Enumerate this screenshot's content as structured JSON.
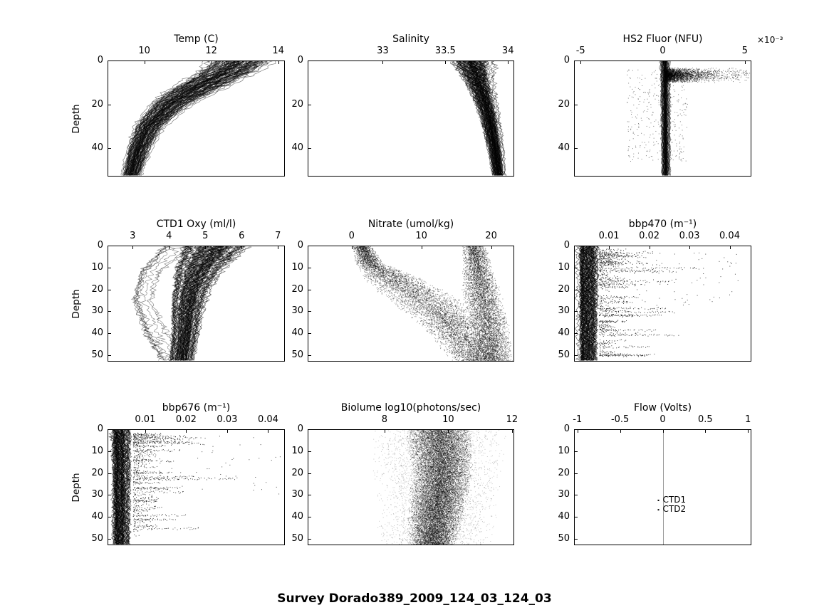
{
  "figure_title": "Survey Dorado389_2009_124_03_124_03",
  "ylabel": "Depth",
  "accent_color": "#000000",
  "background_color": "#ffffff",
  "chart_data": [
    {
      "id": "temp",
      "type": "scatter",
      "title": "Temp (C)",
      "style": "profiles",
      "xlim": [
        8.9,
        14.2
      ],
      "ylim": [
        0,
        53
      ],
      "xticks": [
        10,
        12,
        14
      ],
      "yticks": [
        0,
        20,
        40
      ],
      "has_ylabel": true,
      "profiles": {
        "n": 110,
        "alpha": 0.5,
        "jitter": 0.15,
        "profile": [
          [
            0,
            12.9,
            1.1
          ],
          [
            5,
            12.5,
            1.0
          ],
          [
            10,
            11.9,
            0.9
          ],
          [
            15,
            11.3,
            0.85
          ],
          [
            20,
            10.8,
            0.7
          ],
          [
            30,
            10.15,
            0.5
          ],
          [
            40,
            9.85,
            0.4
          ],
          [
            53,
            9.6,
            0.32
          ]
        ]
      }
    },
    {
      "id": "salinity",
      "type": "scatter",
      "title": "Salinity",
      "style": "profiles",
      "xlim": [
        32.4,
        34.05
      ],
      "ylim": [
        0,
        53
      ],
      "xticks": [
        33,
        33.5,
        34
      ],
      "yticks": [
        0,
        20,
        40
      ],
      "has_ylabel": false,
      "profiles": {
        "n": 110,
        "alpha": 0.5,
        "jitter": 0.2,
        "profile": [
          [
            0,
            33.72,
            0.2
          ],
          [
            8,
            33.76,
            0.14
          ],
          [
            15,
            33.8,
            0.11
          ],
          [
            25,
            33.85,
            0.09
          ],
          [
            40,
            33.9,
            0.07
          ],
          [
            53,
            33.93,
            0.06
          ]
        ]
      }
    },
    {
      "id": "hs2_fluor",
      "type": "scatter",
      "title": "HS2 Fluor (NFU)",
      "title_suffix": "×10⁻³",
      "style": "band_blob",
      "xlim": [
        -5.4,
        5.4
      ],
      "ylim": [
        0,
        53
      ],
      "xticks": [
        -5,
        0,
        5
      ],
      "yticks": [
        0,
        20,
        40
      ],
      "has_ylabel": false,
      "band": {
        "n": 60,
        "alpha": 0.5,
        "jitter": 0.3,
        "profile": [
          [
            0,
            0.15,
            0.35
          ],
          [
            53,
            0.2,
            0.3
          ]
        ]
      },
      "blob": {
        "n": 2600,
        "x_base": 0.1,
        "x_scale": 1.1,
        "x_max": 5.3,
        "depth_mean": 6.5,
        "depth_sd": 1.6
      },
      "noise": {
        "n": 350,
        "x_min": -2.2,
        "x_max": 1.5,
        "d_min": 4,
        "d_max": 46
      }
    },
    {
      "id": "ctd1_oxy",
      "type": "scatter",
      "title": "CTD1 Oxy (ml/l)",
      "style": "profiles",
      "xlim": [
        2.31,
        7.19
      ],
      "ylim": [
        0,
        53
      ],
      "xticks": [
        3,
        4,
        5,
        6,
        7
      ],
      "yticks": [
        0,
        10,
        20,
        30,
        40,
        50
      ],
      "has_ylabel": true,
      "profiles": {
        "n": 100,
        "alpha": 0.5,
        "jitter": 0.15,
        "profile": [
          [
            0,
            5.3,
            1.25
          ],
          [
            5,
            5.1,
            1.05
          ],
          [
            10,
            4.85,
            0.9
          ],
          [
            20,
            4.62,
            0.68
          ],
          [
            30,
            4.5,
            0.58
          ],
          [
            40,
            4.45,
            0.5
          ],
          [
            53,
            4.35,
            0.45
          ]
        ]
      },
      "profiles2": {
        "n": 9,
        "alpha": 0.45,
        "jitter": 0.25,
        "profile": [
          [
            0,
            4.1,
            0.7
          ],
          [
            12,
            3.35,
            0.45
          ],
          [
            25,
            3.15,
            0.4
          ],
          [
            40,
            3.5,
            0.55
          ],
          [
            53,
            4.0,
            0.6
          ]
        ]
      }
    },
    {
      "id": "nitrate",
      "type": "scatter",
      "title": "Nitrate (umol/kg)",
      "style": "speckle",
      "xlim": [
        -6.3,
        23.3
      ],
      "ylim": [
        0,
        53
      ],
      "xticks": [
        0,
        10,
        20
      ],
      "yticks": [
        0,
        10,
        20,
        30,
        40,
        50
      ],
      "has_ylabel": false,
      "populations": [
        {
          "n": 6500,
          "alpha": 0.45,
          "profile": [
            [
              0,
              1.5,
              1.4
            ],
            [
              8,
              2.5,
              2.2
            ],
            [
              15,
              6,
              4.5
            ],
            [
              25,
              10.5,
              5.5
            ],
            [
              35,
              14,
              5
            ],
            [
              45,
              16.5,
              4.5
            ],
            [
              53,
              18,
              3.5
            ]
          ]
        },
        {
          "n": 5500,
          "alpha": 0.45,
          "profile": [
            [
              0,
              17.5,
              1.8
            ],
            [
              10,
              18,
              2.2
            ],
            [
              20,
              18.5,
              2.8
            ],
            [
              35,
              19.5,
              3
            ],
            [
              53,
              20.5,
              2.8
            ]
          ]
        }
      ]
    },
    {
      "id": "bbp470",
      "type": "scatter",
      "title": "bbp470 (m⁻¹)",
      "style": "streaks",
      "xlim": [
        0.0013,
        0.0454
      ],
      "ylim": [
        0,
        53
      ],
      "xticks": [
        0.01,
        0.02,
        0.03,
        0.04
      ],
      "yticks": [
        0,
        10,
        20,
        30,
        40,
        50
      ],
      "has_ylabel": false,
      "band": {
        "n": 65,
        "alpha": 0.6,
        "jitter": 0.3,
        "profile": [
          [
            0,
            0.0045,
            0.0028
          ],
          [
            53,
            0.0045,
            0.0025
          ]
        ]
      },
      "streaks": {
        "count": 130,
        "d_min": 2,
        "d_max": 50,
        "d_pow": 1.4,
        "x_base": 0.0075,
        "x_scale": 0.005,
        "x_max": 0.037,
        "x_step": 0.0004
      },
      "fardots": {
        "n": 70,
        "x_min": 0.015,
        "x_max": 0.042,
        "d_min": 3,
        "d_max": 28
      }
    },
    {
      "id": "bbp676",
      "type": "scatter",
      "title": "bbp676 (m⁻¹)",
      "style": "streaks",
      "xlim": [
        0.0008,
        0.0441
      ],
      "ylim": [
        0,
        53
      ],
      "xticks": [
        0.01,
        0.02,
        0.03,
        0.04
      ],
      "yticks": [
        0,
        10,
        20,
        30,
        40,
        50
      ],
      "has_ylabel": true,
      "band": {
        "n": 65,
        "alpha": 0.6,
        "jitter": 0.3,
        "profile": [
          [
            0,
            0.004,
            0.0026
          ],
          [
            53,
            0.004,
            0.0023
          ]
        ]
      },
      "streaks": {
        "count": 110,
        "d_min": 2,
        "d_max": 50,
        "d_pow": 1.4,
        "x_base": 0.007,
        "x_scale": 0.004,
        "x_max": 0.032,
        "x_step": 0.0004
      },
      "fardots": {
        "n": 50,
        "x_min": 0.013,
        "x_max": 0.043,
        "d_min": 3,
        "d_max": 30
      }
    },
    {
      "id": "biolume",
      "type": "scatter",
      "title": "Biolume log10(photons/sec)",
      "style": "speckle",
      "xlim": [
        5.59,
        12.07
      ],
      "ylim": [
        0,
        53
      ],
      "xticks": [
        8,
        10,
        12
      ],
      "yticks": [
        0,
        10,
        20,
        30,
        40,
        50
      ],
      "has_ylabel": false,
      "populations": [
        {
          "n": 15000,
          "alpha": 0.4,
          "profile": [
            [
              0,
              9.7,
              1.05
            ],
            [
              20,
              9.8,
              1.0
            ],
            [
              40,
              9.6,
              0.9
            ],
            [
              53,
              9.5,
              0.75
            ]
          ]
        },
        {
          "n": 3500,
          "alpha": 0.22,
          "profile": [
            [
              0,
              9.7,
              2.2
            ],
            [
              53,
              9.6,
              1.9
            ]
          ]
        }
      ]
    },
    {
      "id": "flow",
      "type": "scatter",
      "title": "Flow (Volts)",
      "style": "flow",
      "xlim": [
        -1.04,
        1.04
      ],
      "ylim": [
        0,
        53
      ],
      "xticks": [
        -1,
        -0.5,
        0,
        0.5,
        1
      ],
      "yticks": [
        0,
        10,
        20,
        30,
        40,
        50
      ],
      "has_ylabel": false,
      "vline_x": 0,
      "legend": [
        {
          "label": "CTD1",
          "x": -0.05,
          "depth": 32.5
        },
        {
          "label": "CTD2",
          "x": -0.05,
          "depth": 36.8
        }
      ]
    }
  ]
}
